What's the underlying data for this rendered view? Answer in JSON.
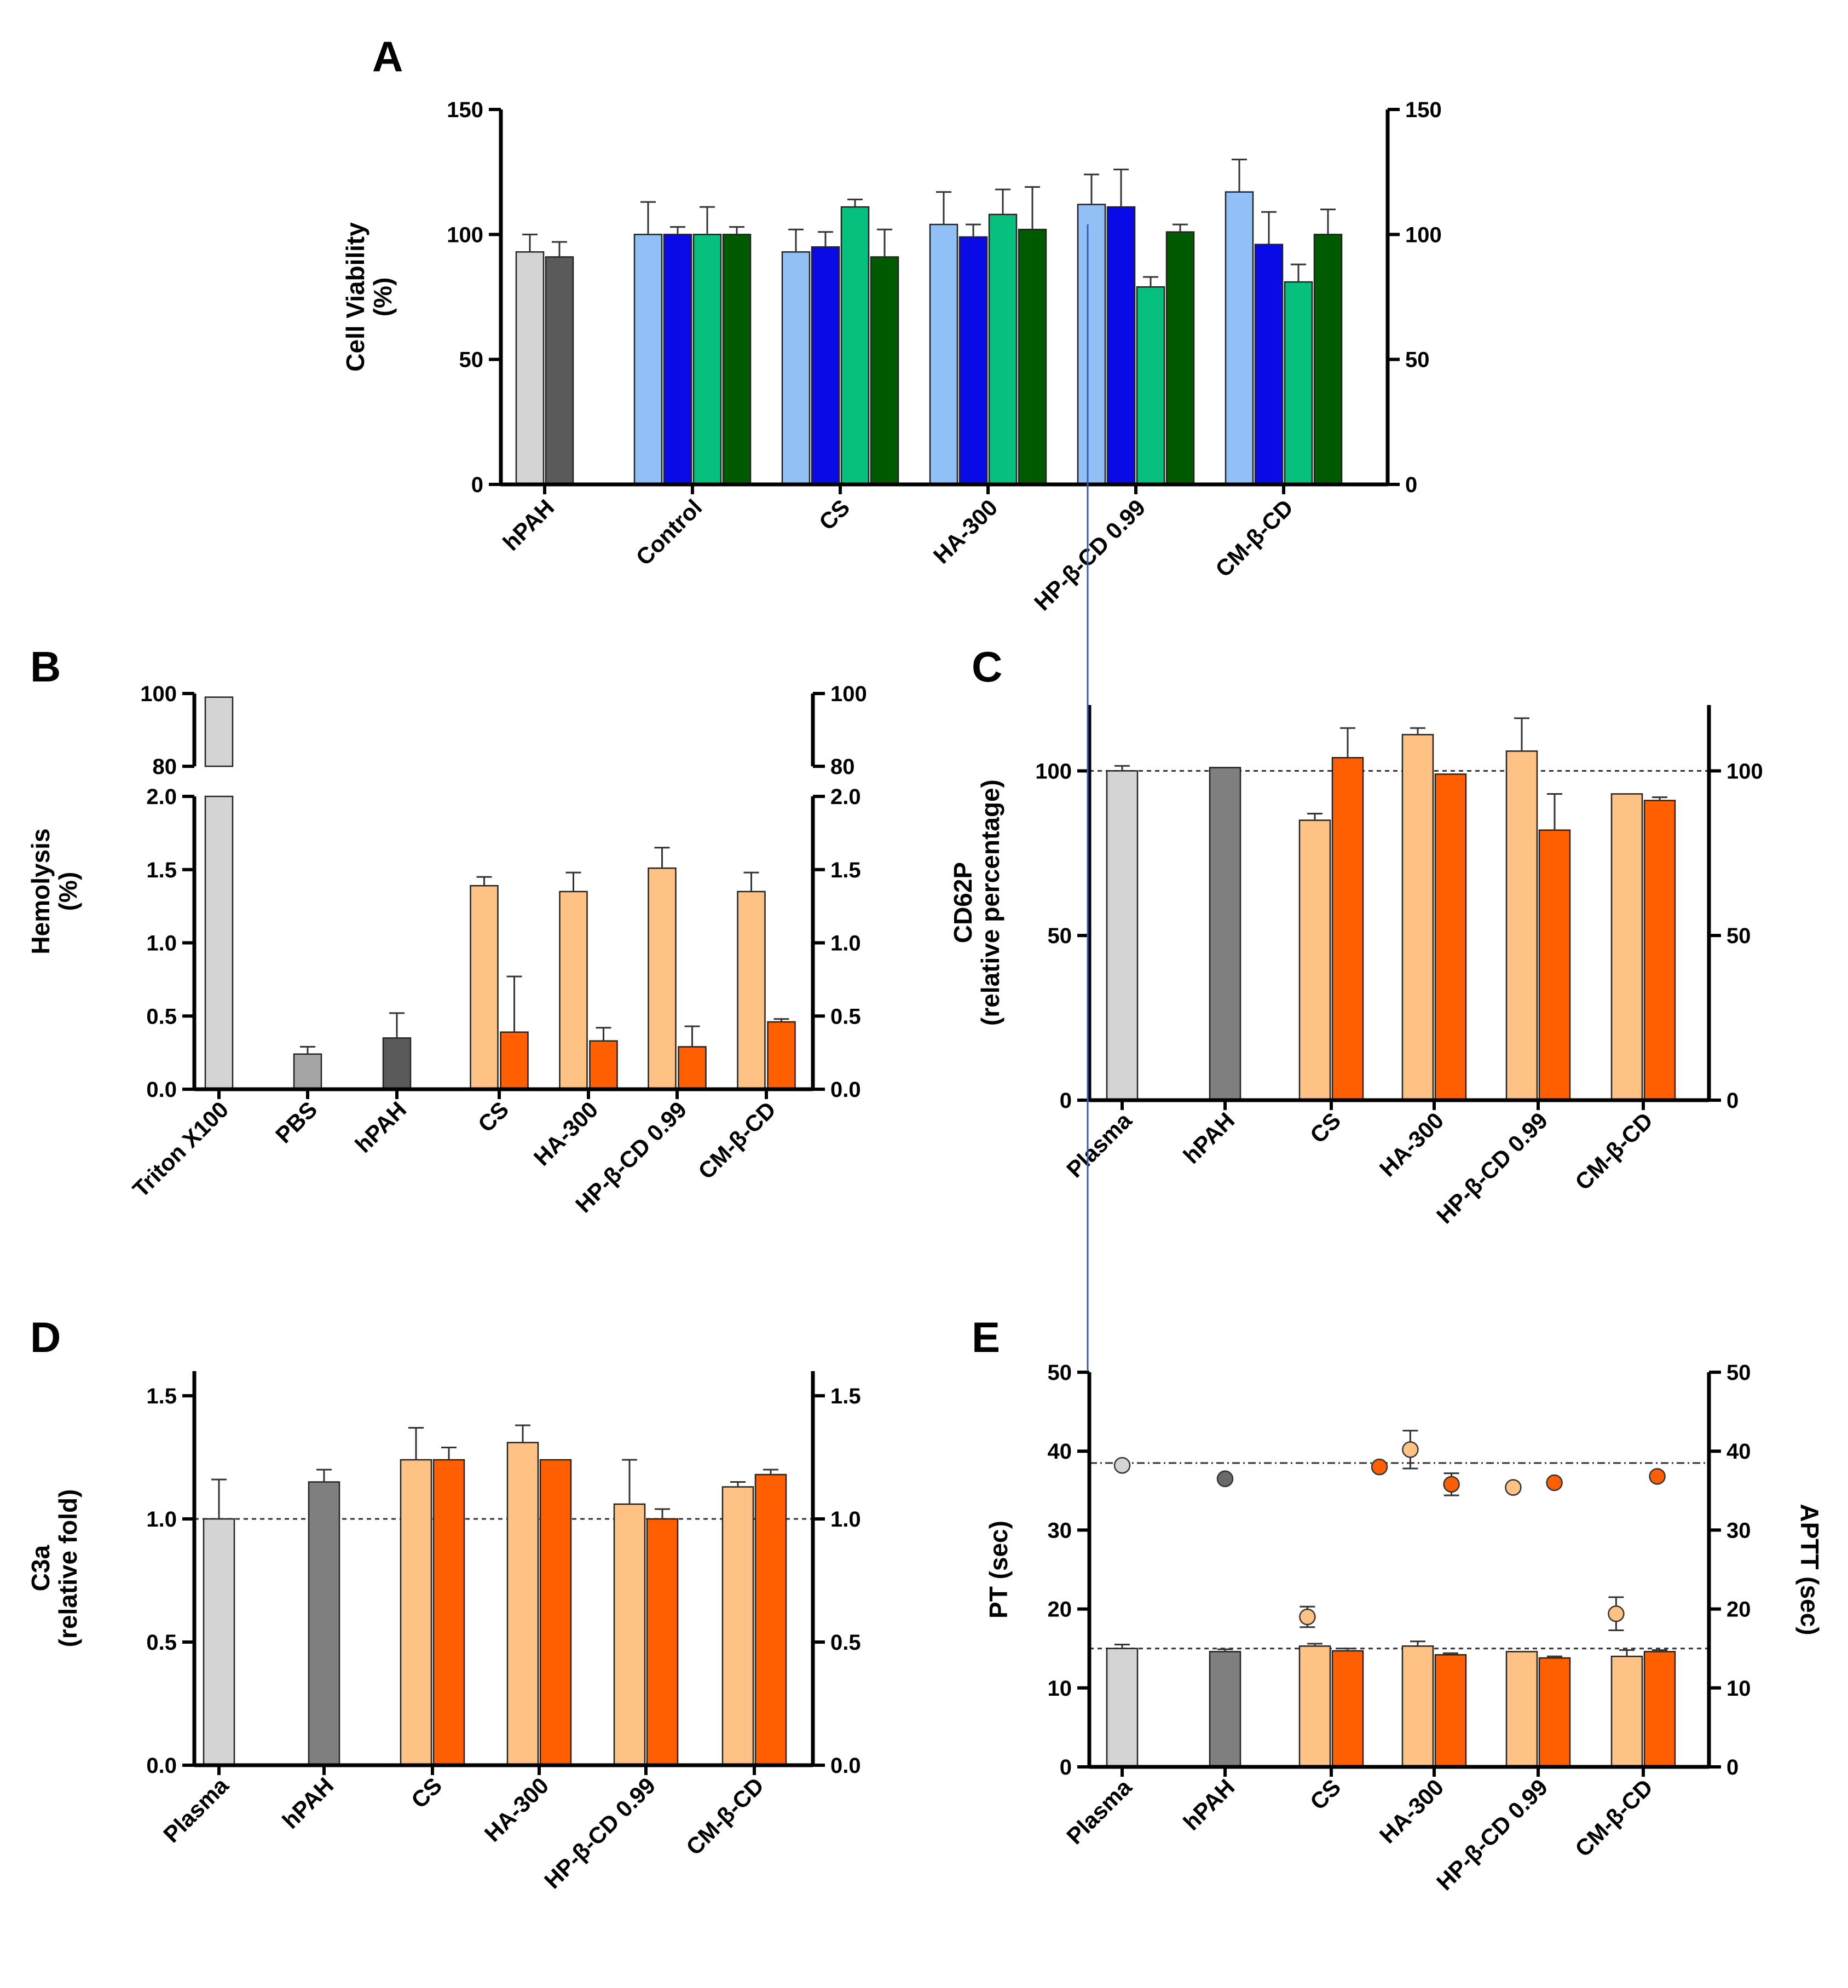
{
  "chart_data": [
    {
      "panel": "A",
      "type": "bar",
      "ylabel": "Cell Viability (%)",
      "ylabel_lines": [
        "Cell Viability",
        "(%)"
      ],
      "ylim": [
        0,
        150
      ],
      "yticks": [
        0,
        50,
        100,
        150
      ],
      "right_axis": true,
      "groups": [
        {
          "label": "hPAH",
          "bars": [
            {
              "value": 93,
              "err": 7,
              "color": "#d4d4d4"
            },
            {
              "value": 91,
              "err": 6,
              "color": "#5a5a5a"
            }
          ]
        },
        {
          "label": "Control",
          "bars": [
            {
              "value": 100,
              "err": 13,
              "color": "#91c0f7"
            },
            {
              "value": 100,
              "err": 3,
              "color": "#0a0ae6"
            },
            {
              "value": 100,
              "err": 11,
              "color": "#07c07e"
            },
            {
              "value": 100,
              "err": 3,
              "color": "#005a00"
            }
          ]
        },
        {
          "label": "CS",
          "bars": [
            {
              "value": 93,
              "err": 9,
              "color": "#91c0f7"
            },
            {
              "value": 95,
              "err": 6,
              "color": "#0a0ae6"
            },
            {
              "value": 111,
              "err": 3,
              "color": "#07c07e"
            },
            {
              "value": 91,
              "err": 11,
              "color": "#005a00"
            }
          ]
        },
        {
          "label": "HA-300",
          "bars": [
            {
              "value": 104,
              "err": 13,
              "color": "#91c0f7"
            },
            {
              "value": 99,
              "err": 5,
              "color": "#0a0ae6"
            },
            {
              "value": 108,
              "err": 10,
              "color": "#07c07e"
            },
            {
              "value": 102,
              "err": 17,
              "color": "#005a00"
            }
          ]
        },
        {
          "label": "HP-β-CD 0.99",
          "bars": [
            {
              "value": 112,
              "err": 12,
              "color": "#91c0f7"
            },
            {
              "value": 111,
              "err": 15,
              "color": "#0a0ae6"
            },
            {
              "value": 79,
              "err": 4,
              "color": "#07c07e"
            },
            {
              "value": 101,
              "err": 3,
              "color": "#005a00"
            }
          ]
        },
        {
          "label": "CM-β-CD",
          "bars": [
            {
              "value": 117,
              "err": 13,
              "color": "#91c0f7"
            },
            {
              "value": 96,
              "err": 13,
              "color": "#0a0ae6"
            },
            {
              "value": 81,
              "err": 7,
              "color": "#07c07e"
            },
            {
              "value": 100,
              "err": 10,
              "color": "#005a00"
            }
          ]
        }
      ]
    },
    {
      "panel": "B",
      "type": "bar",
      "ylabel": "Hemolysis (%)",
      "ylabel_lines": [
        "Hemolysis",
        "(%)"
      ],
      "ylim": [
        0,
        2.0
      ],
      "yticks": [
        "0.0",
        "0.5",
        "1.0",
        "1.5",
        "2.0"
      ],
      "broken_axis": {
        "upper_range": [
          80,
          100
        ],
        "upper_ticks": [
          "80",
          "100"
        ]
      },
      "right_axis": true,
      "groups": [
        {
          "label": "Triton X100",
          "bars": [
            {
              "value": 99,
              "err": 0,
              "color": "#d4d4d4",
              "broken": true
            }
          ]
        },
        {
          "label": "PBS",
          "bars": [
            {
              "value": 0.24,
              "err": 0.05,
              "color": "#a5a5a5"
            }
          ]
        },
        {
          "label": "hPAH",
          "bars": [
            {
              "value": 0.35,
              "err": 0.17,
              "color": "#5a5a5a"
            }
          ]
        },
        {
          "label": "CS",
          "bars": [
            {
              "value": 1.39,
              "err": 0.06,
              "color": "#ffc285"
            },
            {
              "value": 0.39,
              "err": 0.38,
              "color": "#ff5f00"
            }
          ]
        },
        {
          "label": "HA-300",
          "bars": [
            {
              "value": 1.35,
              "err": 0.13,
              "color": "#ffc285"
            },
            {
              "value": 0.33,
              "err": 0.09,
              "color": "#ff5f00"
            }
          ]
        },
        {
          "label": "HP-β-CD 0.99",
          "bars": [
            {
              "value": 1.51,
              "err": 0.14,
              "color": "#ffc285"
            },
            {
              "value": 0.29,
              "err": 0.14,
              "color": "#ff5f00"
            }
          ]
        },
        {
          "label": "CM-β-CD",
          "bars": [
            {
              "value": 1.35,
              "err": 0.13,
              "color": "#ffc285"
            },
            {
              "value": 0.46,
              "err": 0.02,
              "color": "#ff5f00"
            }
          ]
        }
      ]
    },
    {
      "panel": "C",
      "type": "bar",
      "ylabel": "CD62P (relative percentage)",
      "ylabel_lines": [
        "CD62P",
        "(relative percentage)"
      ],
      "ylim": [
        0,
        120
      ],
      "yticks": [
        0,
        50,
        100
      ],
      "reference_line": 100,
      "right_axis": true,
      "groups": [
        {
          "label": "Plasma",
          "bars": [
            {
              "value": 100,
              "err": 1.5,
              "color": "#d4d4d4"
            }
          ]
        },
        {
          "label": "hPAH",
          "bars": [
            {
              "value": 101,
              "err": 0,
              "color": "#7f7f7f"
            }
          ]
        },
        {
          "label": "CS",
          "bars": [
            {
              "value": 85,
              "err": 2,
              "color": "#ffc285"
            },
            {
              "value": 104,
              "err": 9,
              "color": "#ff5f00"
            }
          ]
        },
        {
          "label": "HA-300",
          "bars": [
            {
              "value": 111,
              "err": 2,
              "color": "#ffc285"
            },
            {
              "value": 99,
              "err": 0,
              "color": "#ff5f00"
            }
          ]
        },
        {
          "label": "HP-β-CD 0.99",
          "bars": [
            {
              "value": 106,
              "err": 10,
              "color": "#ffc285"
            },
            {
              "value": 82,
              "err": 11,
              "color": "#ff5f00"
            }
          ]
        },
        {
          "label": "CM-β-CD",
          "bars": [
            {
              "value": 93,
              "err": 0,
              "color": "#ffc285"
            },
            {
              "value": 91,
              "err": 1,
              "color": "#ff5f00"
            }
          ]
        }
      ]
    },
    {
      "panel": "D",
      "type": "bar",
      "ylabel": "C3a (relative fold)",
      "ylabel_lines": [
        "C3a",
        "(relative fold)"
      ],
      "ylim": [
        0,
        1.6
      ],
      "yticks": [
        "0.0",
        "0.5",
        "1.0",
        "1.5"
      ],
      "reference_line": 1.0,
      "right_axis": true,
      "groups": [
        {
          "label": "Plasma",
          "bars": [
            {
              "value": 1.0,
              "err": 0.16,
              "color": "#d4d4d4"
            }
          ]
        },
        {
          "label": "hPAH",
          "bars": [
            {
              "value": 1.15,
              "err": 0.05,
              "color": "#7f7f7f"
            }
          ]
        },
        {
          "label": "CS",
          "bars": [
            {
              "value": 1.24,
              "err": 0.13,
              "color": "#ffc285"
            },
            {
              "value": 1.24,
              "err": 0.05,
              "color": "#ff5f00"
            }
          ]
        },
        {
          "label": "HA-300",
          "bars": [
            {
              "value": 1.31,
              "err": 0.07,
              "color": "#ffc285"
            },
            {
              "value": 1.24,
              "err": 0,
              "color": "#ff5f00"
            }
          ]
        },
        {
          "label": "HP-β-CD 0.99",
          "bars": [
            {
              "value": 1.06,
              "err": 0.18,
              "color": "#ffc285"
            },
            {
              "value": 1.0,
              "err": 0.04,
              "color": "#ff5f00"
            }
          ]
        },
        {
          "label": "CM-β-CD",
          "bars": [
            {
              "value": 1.13,
              "err": 0.02,
              "color": "#ffc285"
            },
            {
              "value": 1.18,
              "err": 0.02,
              "color": "#ff5f00"
            }
          ]
        }
      ]
    },
    {
      "panel": "E",
      "type": "bar",
      "ylabel": "PT (sec)",
      "ylabel_right": "APTT (sec)",
      "ylim": [
        0,
        50
      ],
      "yticks": [
        0,
        10,
        20,
        30,
        40,
        50
      ],
      "reference_line": 15,
      "reference_line_secondary": 38.5,
      "right_axis": true,
      "groups": [
        {
          "label": "Plasma",
          "bars": [
            {
              "value": 15,
              "err": 0.5,
              "color": "#d4d4d4"
            }
          ]
        },
        {
          "label": "hPAH",
          "bars": [
            {
              "value": 14.6,
              "err": 0.3,
              "color": "#7f7f7f"
            }
          ]
        },
        {
          "label": "CS",
          "bars": [
            {
              "value": 15.3,
              "err": 0.3,
              "color": "#ffc285"
            },
            {
              "value": 14.7,
              "err": 0.3,
              "color": "#ff5f00"
            }
          ]
        },
        {
          "label": "HA-300",
          "bars": [
            {
              "value": 15.3,
              "err": 0.6,
              "color": "#ffc285"
            },
            {
              "value": 14.2,
              "err": 0.2,
              "color": "#ff5f00"
            }
          ]
        },
        {
          "label": "HP-β-CD 0.99",
          "bars": [
            {
              "value": 14.6,
              "err": 0,
              "color": "#ffc285"
            },
            {
              "value": 13.8,
              "err": 0.2,
              "color": "#ff5f00"
            }
          ]
        },
        {
          "label": "CM-β-CD",
          "bars": [
            {
              "value": 14,
              "err": 0.8,
              "color": "#ffc285"
            },
            {
              "value": 14.6,
              "err": 0.2,
              "color": "#ff5f00"
            }
          ]
        }
      ],
      "aptt_points": [
        {
          "x": 0,
          "value": 38.2,
          "err": 0,
          "color": "#d4d4d4"
        },
        {
          "x": 1,
          "value": 36.5,
          "err": 0,
          "color": "#6a6a6a"
        },
        {
          "x": 2.5,
          "value": 38,
          "err": 0,
          "color": "#ff5f00"
        },
        {
          "x": 2.8,
          "value": 40.2,
          "err": 2.4,
          "color": "#ffc285"
        },
        {
          "x": 3.2,
          "value": 35.8,
          "err": 1.4,
          "color": "#ff5f00"
        },
        {
          "x": 3.8,
          "value": 35.4,
          "err": 0,
          "color": "#ffc285"
        },
        {
          "x": 4.2,
          "value": 36,
          "err": 0,
          "color": "#ff5f00"
        },
        {
          "x": 5.2,
          "value": 36.8,
          "err": 0,
          "color": "#ff5f00"
        }
      ],
      "pt_points": [
        {
          "x": 1.8,
          "value": 19,
          "err": 1.3,
          "color": "#ffc285"
        },
        {
          "x": 4.8,
          "value": 19.4,
          "err": 2.1,
          "color": "#ffc285"
        }
      ]
    }
  ]
}
